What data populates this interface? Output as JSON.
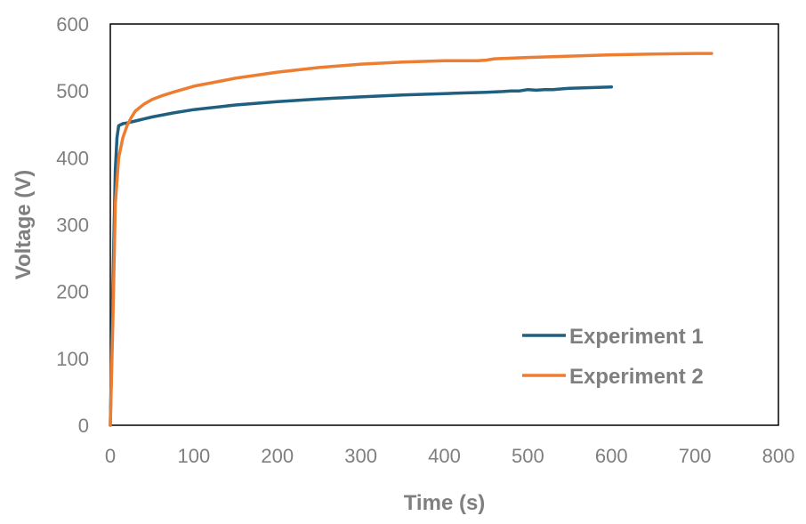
{
  "chart_data": {
    "type": "line",
    "title": "",
    "xlabel": "Time (s)",
    "ylabel": "Voltage (V)",
    "xlim": [
      0,
      800
    ],
    "ylim": [
      0,
      600
    ],
    "x_ticks": [
      0,
      100,
      200,
      300,
      400,
      500,
      600,
      700,
      800
    ],
    "y_ticks": [
      0,
      100,
      200,
      300,
      400,
      500,
      600
    ],
    "grid": false,
    "legend_position": "bottom-right",
    "series": [
      {
        "name": "Experiment 1",
        "color": "#1f5f7f",
        "x": [
          0,
          3,
          6,
          8,
          10,
          15,
          20,
          30,
          40,
          50,
          75,
          100,
          150,
          200,
          250,
          300,
          350,
          400,
          450,
          470,
          480,
          490,
          500,
          510,
          520,
          530,
          550,
          600
        ],
        "y": [
          0,
          200,
          380,
          430,
          448,
          451,
          452,
          455,
          458,
          461,
          467,
          472,
          479,
          484,
          488,
          491,
          494,
          496,
          498,
          499,
          500,
          500,
          502,
          501,
          502,
          502,
          504,
          506
        ]
      },
      {
        "name": "Experiment 2",
        "color": "#ed7d31",
        "x": [
          0,
          3,
          6,
          10,
          15,
          20,
          25,
          30,
          40,
          50,
          60,
          75,
          100,
          150,
          200,
          250,
          300,
          350,
          400,
          440,
          450,
          460,
          500,
          550,
          600,
          650,
          700,
          720
        ],
        "y": [
          0,
          150,
          330,
          400,
          430,
          448,
          460,
          470,
          480,
          487,
          492,
          498,
          507,
          519,
          528,
          535,
          540,
          543,
          545,
          545,
          546,
          548,
          550,
          552,
          554,
          555,
          556,
          556
        ]
      }
    ]
  }
}
